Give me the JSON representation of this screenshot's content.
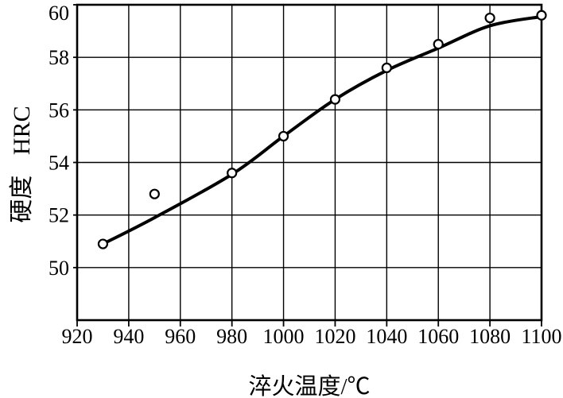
{
  "figure": {
    "background": "#ffffff",
    "ink": "#000000"
  },
  "chart_data": {
    "type": "scatter",
    "title": "",
    "xlabel": "淬火温度/℃",
    "ylabel": "硬度 HRC",
    "xlim": [
      920,
      1100
    ],
    "ylim": [
      48,
      60
    ],
    "xticks": [
      920,
      940,
      960,
      980,
      1000,
      1020,
      1040,
      1060,
      1080,
      1100
    ],
    "yticks": [
      50,
      52,
      54,
      56,
      58,
      60
    ],
    "grid": true,
    "legend": "none",
    "series": [
      {
        "name": "measured-hardness-points",
        "type": "scatter",
        "marker": "open-circle",
        "points": [
          [
            930,
            50.9
          ],
          [
            950,
            52.8
          ],
          [
            980,
            53.6
          ],
          [
            1000,
            55.0
          ],
          [
            1020,
            56.4
          ],
          [
            1040,
            57.6
          ],
          [
            1060,
            58.5
          ],
          [
            1080,
            59.5
          ],
          [
            1100,
            59.6
          ]
        ]
      },
      {
        "name": "fitted-trend-curve",
        "type": "line",
        "style": "smooth-line",
        "points": [
          [
            930,
            50.9
          ],
          [
            950,
            51.9
          ],
          [
            980,
            53.55
          ],
          [
            1000,
            55.0
          ],
          [
            1020,
            56.4
          ],
          [
            1040,
            57.5
          ],
          [
            1060,
            58.35
          ],
          [
            1080,
            59.2
          ],
          [
            1100,
            59.55
          ]
        ]
      }
    ]
  }
}
